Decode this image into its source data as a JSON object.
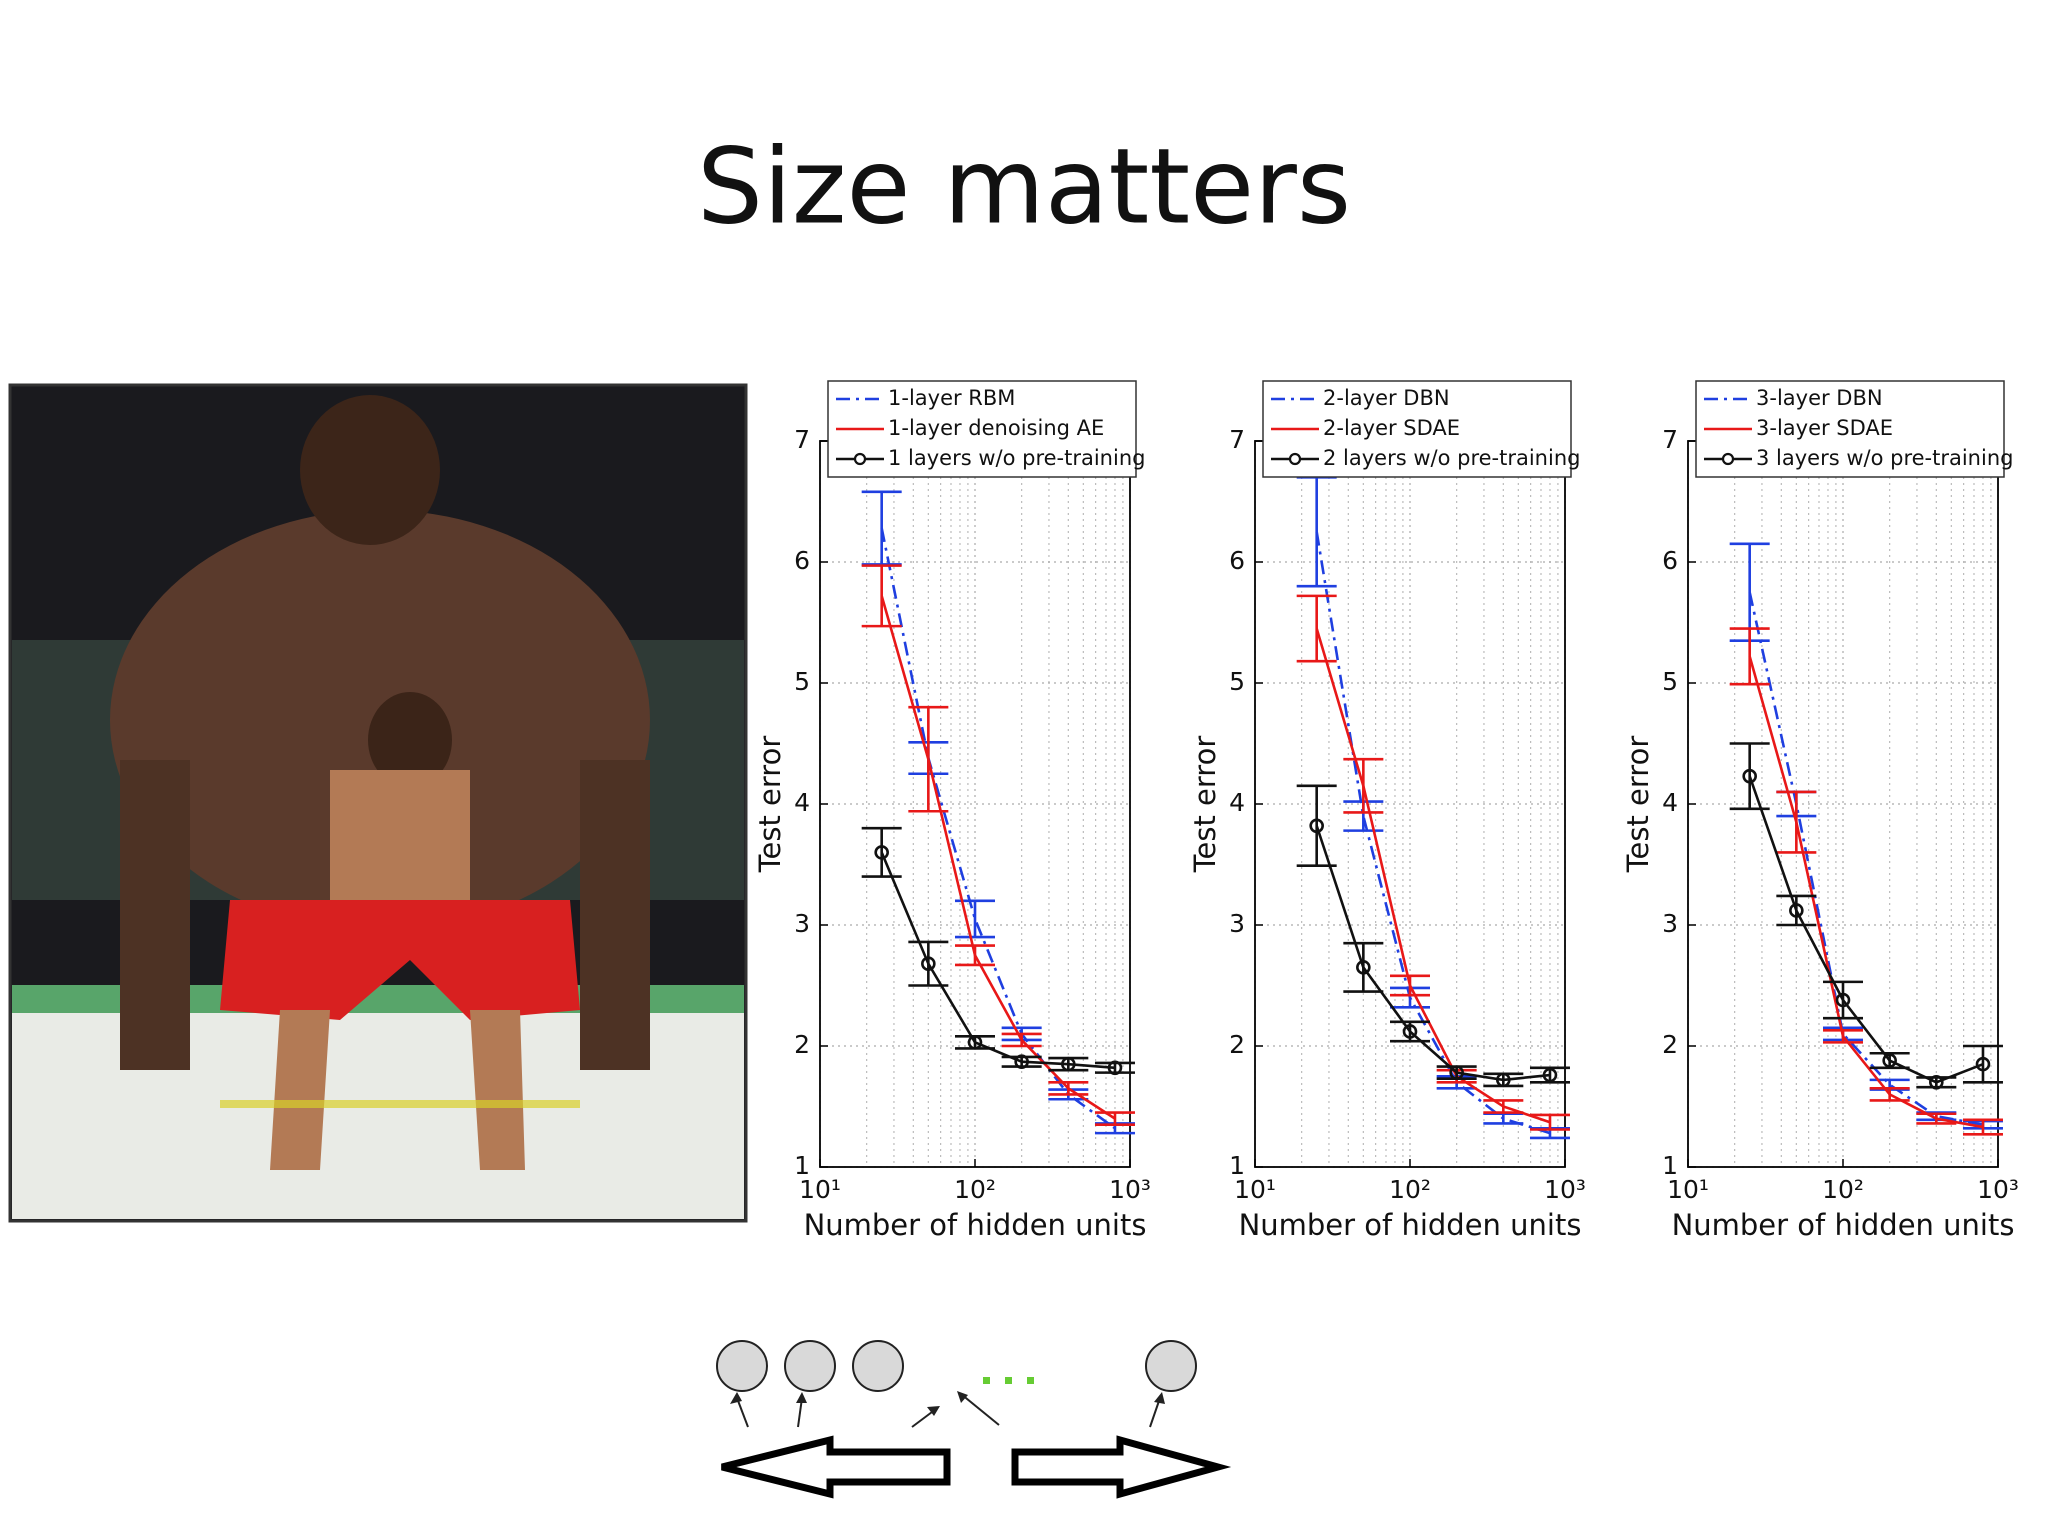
{
  "title": "Size matters",
  "chart_data": [
    {
      "type": "line",
      "xlabel": "Number of hidden units",
      "ylabel": "Test error",
      "xscale": "log",
      "grid": true,
      "legend": "top",
      "xlim": [
        10,
        1000
      ],
      "ylim": [
        1,
        7
      ],
      "xticks": [
        {
          "value": 10,
          "label": "10¹"
        },
        {
          "value": 100,
          "label": "10²"
        },
        {
          "value": 1000,
          "label": "10³"
        }
      ],
      "yticks": [
        1,
        2,
        3,
        4,
        5,
        6,
        7
      ],
      "x": [
        25,
        50,
        100,
        200,
        400,
        800
      ],
      "series": [
        {
          "name": "1-layer RBM",
          "color": "#1f3fe0",
          "linestyle": "-.",
          "marker": "none",
          "values": [
            6.28,
            4.38,
            3.05,
            2.1,
            1.6,
            1.32
          ],
          "errors": [
            0.3,
            0.13,
            0.15,
            0.05,
            0.04,
            0.04
          ]
        },
        {
          "name": "1-layer denoising AE",
          "color": "#e81818",
          "linestyle": "-",
          "marker": "none",
          "values": [
            5.72,
            4.37,
            2.75,
            2.05,
            1.65,
            1.4
          ],
          "errors": [
            0.25,
            0.43,
            0.08,
            0.05,
            0.05,
            0.05
          ]
        },
        {
          "name": "1 layers w/o pre-training",
          "color": "#111111",
          "linestyle": "-",
          "marker": "o",
          "values": [
            3.6,
            2.68,
            2.03,
            1.87,
            1.85,
            1.82
          ],
          "errors": [
            0.2,
            0.18,
            0.05,
            0.04,
            0.05,
            0.04
          ]
        }
      ]
    },
    {
      "type": "line",
      "xlabel": "Number of hidden units",
      "ylabel": "Test error",
      "xscale": "log",
      "grid": true,
      "legend": "top",
      "xlim": [
        10,
        1000
      ],
      "ylim": [
        1,
        7
      ],
      "xticks": [
        {
          "value": 10,
          "label": "10¹"
        },
        {
          "value": 100,
          "label": "10²"
        },
        {
          "value": 1000,
          "label": "10³"
        }
      ],
      "yticks": [
        1,
        2,
        3,
        4,
        5,
        6,
        7
      ],
      "x": [
        25,
        50,
        100,
        200,
        400,
        800
      ],
      "series": [
        {
          "name": "2-layer DBN",
          "color": "#1f3fe0",
          "linestyle": "-.",
          "marker": "none",
          "values": [
            6.25,
            3.9,
            2.4,
            1.7,
            1.4,
            1.28
          ],
          "errors": [
            0.45,
            0.12,
            0.08,
            0.05,
            0.04,
            0.04
          ]
        },
        {
          "name": "2-layer SDAE",
          "color": "#e81818",
          "linestyle": "-",
          "marker": "none",
          "values": [
            5.45,
            4.15,
            2.5,
            1.75,
            1.5,
            1.37
          ],
          "errors": [
            0.27,
            0.22,
            0.08,
            0.05,
            0.05,
            0.06
          ]
        },
        {
          "name": "2 layers w/o pre-training",
          "color": "#111111",
          "linestyle": "-",
          "marker": "o",
          "values": [
            3.82,
            2.65,
            2.12,
            1.78,
            1.72,
            1.76
          ],
          "errors": [
            0.33,
            0.2,
            0.08,
            0.05,
            0.05,
            0.06
          ]
        }
      ]
    },
    {
      "type": "line",
      "xlabel": "Number of hidden units",
      "ylabel": "Test error",
      "xscale": "log",
      "grid": true,
      "legend": "top",
      "xlim": [
        10,
        1000
      ],
      "ylim": [
        1,
        7
      ],
      "xticks": [
        {
          "value": 10,
          "label": "10¹"
        },
        {
          "value": 100,
          "label": "10²"
        },
        {
          "value": 1000,
          "label": "10³"
        }
      ],
      "yticks": [
        1,
        2,
        3,
        4,
        5,
        6,
        7
      ],
      "x": [
        25,
        50,
        100,
        200,
        400,
        800
      ],
      "series": [
        {
          "name": "3-layer DBN",
          "color": "#1f3fe0",
          "linestyle": "-.",
          "marker": "none",
          "values": [
            5.75,
            4.0,
            2.1,
            1.68,
            1.42,
            1.35
          ],
          "errors": [
            0.4,
            0.1,
            0.05,
            0.04,
            0.03,
            0.03
          ]
        },
        {
          "name": "3-layer SDAE",
          "color": "#e81818",
          "linestyle": "-",
          "marker": "none",
          "values": [
            5.22,
            3.85,
            2.08,
            1.6,
            1.4,
            1.33
          ],
          "errors": [
            0.23,
            0.25,
            0.05,
            0.05,
            0.04,
            0.06
          ]
        },
        {
          "name": "3 layers w/o pre-training",
          "color": "#111111",
          "linestyle": "-",
          "marker": "o",
          "values": [
            4.23,
            3.12,
            2.38,
            1.88,
            1.7,
            1.85
          ],
          "errors": [
            0.27,
            0.12,
            0.15,
            0.06,
            0.04,
            0.15
          ]
        }
      ]
    }
  ]
}
